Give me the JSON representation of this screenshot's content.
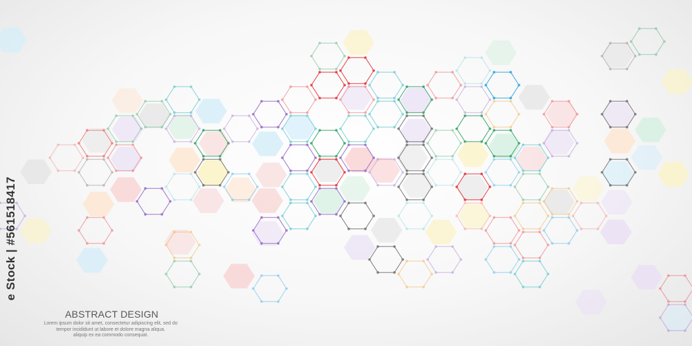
{
  "text": {
    "title": "ABSTRACT DESIGN",
    "lines": [
      "Lorem ipsum dolor sit amet, consectetur adipiscing elit, sed do",
      "tempor incididunt ut labore et dolore magna aliqua.",
      "aliquip ex ea commodo consequat."
    ]
  },
  "watermark": "e Stock | #561518417",
  "colors": {
    "outline": [
      "#e8383d",
      "#3aa56b",
      "#2fa8e0",
      "#777777",
      "#f0a030",
      "#9b6fc8",
      "#7fd0d8",
      "#f08080"
    ],
    "fill": [
      "#f9d6d6",
      "#d6eef9",
      "#e6e6e6",
      "#fbf3c8",
      "#e9dff5",
      "#d8f0e2",
      "#fde6d2"
    ]
  }
}
